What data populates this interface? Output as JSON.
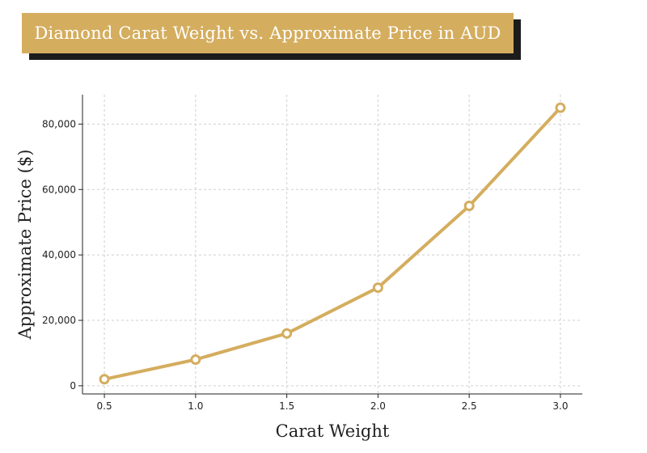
{
  "chart_data": {
    "type": "line",
    "title": "Diamond Carat Weight vs. Approximate Price in AUD",
    "xlabel": "Carat Weight",
    "ylabel": "Approximate Price ($)",
    "x": [
      0.5,
      1.0,
      1.5,
      2.0,
      2.5,
      3.0
    ],
    "series": [
      {
        "values": [
          2000,
          8000,
          16000,
          30000,
          55000,
          85000
        ]
      }
    ],
    "xticks": [
      "0.5",
      "1.0",
      "1.5",
      "2.0",
      "2.5",
      "3.0"
    ],
    "yticks": [
      "0",
      "20,000",
      "40,000",
      "60,000",
      "80,000"
    ],
    "xlim": [
      0.38,
      3.12
    ],
    "ylim": [
      -2500,
      89000
    ],
    "grid": true,
    "colors": {
      "line": "#d4ad5e",
      "title_bg": "#d4ad5e",
      "title_shadow": "#1c1c1c"
    }
  }
}
